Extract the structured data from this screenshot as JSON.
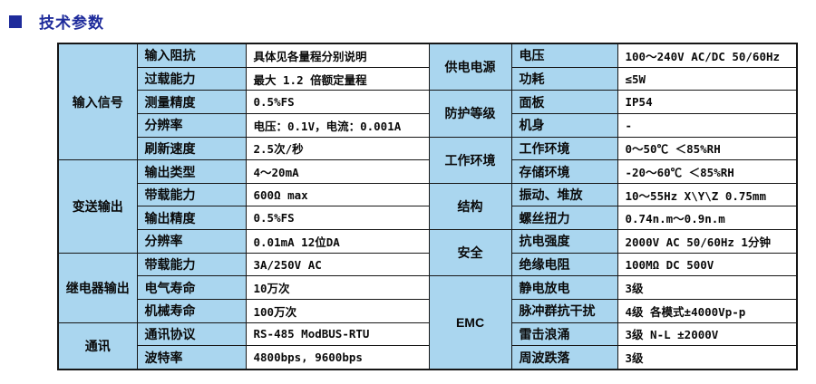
{
  "page": {
    "title": "技术参数",
    "colors": {
      "accent_navy": "#1e2b9b",
      "cell_blue": "#aad6ef",
      "border": "#161616"
    },
    "bullet_icon": "square"
  },
  "table": {
    "left": {
      "sections": [
        {
          "category": "输入信号",
          "rows": [
            {
              "label": "输入阻抗",
              "value": "具体见各量程分别说明"
            },
            {
              "label": "过载能力",
              "value": "最大 1.2 倍额定量程"
            },
            {
              "label": "测量精度",
              "value": "0.5%FS"
            },
            {
              "label": "分辨率",
              "value": "电压：0.1V，电流：0.001A"
            },
            {
              "label": "刷新速度",
              "value": "2.5次/秒"
            }
          ]
        },
        {
          "category": "变送输出",
          "rows": [
            {
              "label": "输出类型",
              "value": "4～20mA"
            },
            {
              "label": "带载能力",
              "value": "600Ω  max"
            },
            {
              "label": "输出精度",
              "value": "0.5%FS"
            },
            {
              "label": "分辨率",
              "value": "0.01mA  12位DA"
            }
          ]
        },
        {
          "category": "继电器输出",
          "rows": [
            {
              "label": "带载能力",
              "value": "3A/250V AC"
            },
            {
              "label": "电气寿命",
              "value": "10万次"
            },
            {
              "label": "机械寿命",
              "value": "100万次"
            }
          ]
        },
        {
          "category": "通讯",
          "rows": [
            {
              "label": "通讯协议",
              "value": "RS-485 ModBUS-RTU"
            },
            {
              "label": "波特率",
              "value": "4800bps, 9600bps"
            }
          ]
        }
      ]
    },
    "right": {
      "sections": [
        {
          "category": "供电电源",
          "rows": [
            {
              "label": "电压",
              "value": "100～240V AC/DC  50/60Hz"
            },
            {
              "label": "功耗",
              "value": "≤5W"
            }
          ]
        },
        {
          "category": "防护等级",
          "rows": [
            {
              "label": "面板",
              "value": "IP54"
            },
            {
              "label": "机身",
              "value": "-"
            }
          ]
        },
        {
          "category": "工作环境",
          "rows": [
            {
              "label": "工作环境",
              "value": "0～50℃  ＜85%RH"
            },
            {
              "label": "存储环境",
              "value": "-20～60℃  ＜85%RH"
            }
          ]
        },
        {
          "category": "结构",
          "rows": [
            {
              "label": "振动、堆放",
              "value": "10～55Hz  X\\Y\\Z   0.75mm"
            },
            {
              "label": "螺丝扭力",
              "value": "0.74n.m～0.9n.m"
            }
          ]
        },
        {
          "category": "安全",
          "rows": [
            {
              "label": "抗电强度",
              "value": "2000V AC   50/60Hz  1分钟"
            },
            {
              "label": "绝缘电阻",
              "value": "100MΩ   DC 500V"
            }
          ]
        },
        {
          "category": "EMC",
          "rows": [
            {
              "label": "静电放电",
              "value": "3级"
            },
            {
              "label": "脉冲群抗干扰",
              "value": "4级 各模式±4000Vp-p"
            },
            {
              "label": "雷击浪涌",
              "value": "3级 N-L ±2000V"
            },
            {
              "label": "周波跌落",
              "value": "3级"
            }
          ]
        }
      ]
    }
  }
}
